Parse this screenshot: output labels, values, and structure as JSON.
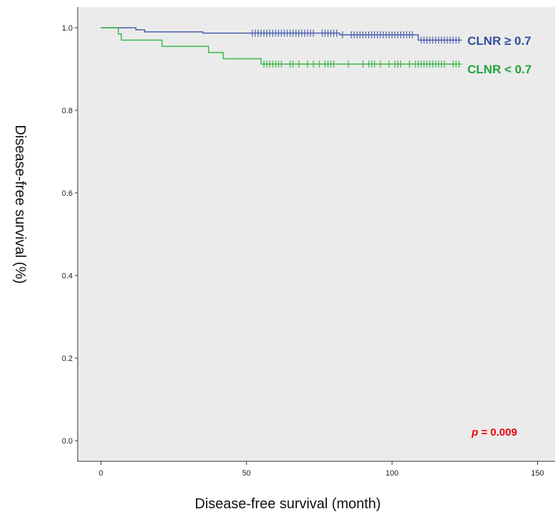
{
  "chart_data": {
    "type": "line",
    "xlabel": "Disease-free survival (month)",
    "ylabel": "Disease-free survival (%)",
    "xlim": [
      -8,
      156
    ],
    "ylim": [
      -0.05,
      1.05
    ],
    "x_ticks": [
      0,
      50,
      100,
      150
    ],
    "y_ticks": [
      0.0,
      0.2,
      0.4,
      0.6,
      0.8,
      1.0
    ],
    "x_tick_labels": [
      "0",
      "50",
      "100",
      "150"
    ],
    "y_tick_labels": [
      "0.0",
      "0.2",
      "0.4",
      "0.6",
      "0.8",
      "1.0"
    ],
    "grid": false,
    "background": "#ebebeb",
    "series": [
      {
        "name": "CLNR ≥ 0.7",
        "color": "#4a5eae",
        "steps": [
          [
            0,
            1.0
          ],
          [
            12,
            0.995
          ],
          [
            15,
            0.99
          ],
          [
            35,
            0.987
          ],
          [
            82,
            0.983
          ],
          [
            109,
            0.97
          ],
          [
            124,
            0.97
          ]
        ],
        "censored": [
          52,
          53,
          54,
          55,
          56,
          57,
          58,
          59,
          60,
          61,
          62,
          63,
          64,
          65,
          66,
          67,
          68,
          69,
          70,
          71,
          72,
          73,
          76,
          77,
          78,
          79,
          80,
          81,
          83,
          86,
          87,
          88,
          89,
          90,
          91,
          92,
          93,
          94,
          95,
          96,
          97,
          98,
          99,
          100,
          101,
          102,
          103,
          104,
          105,
          106,
          107,
          110,
          111,
          112,
          113,
          114,
          115,
          116,
          117,
          118,
          119,
          120,
          121,
          122,
          123
        ]
      },
      {
        "name": "CLNR < 0.7",
        "color": "#3cb84a",
        "steps": [
          [
            0,
            1.0
          ],
          [
            6,
            0.985
          ],
          [
            7,
            0.97
          ],
          [
            21,
            0.955
          ],
          [
            37,
            0.94
          ],
          [
            42,
            0.925
          ],
          [
            55,
            0.912
          ],
          [
            124,
            0.912
          ]
        ],
        "censored": [
          56,
          57,
          58,
          59,
          60,
          61,
          62,
          65,
          66,
          68,
          71,
          73,
          75,
          77,
          78,
          79,
          80,
          85,
          90,
          92,
          93,
          94,
          96,
          99,
          101,
          102,
          103,
          106,
          108,
          109,
          110,
          111,
          112,
          113,
          114,
          115,
          116,
          117,
          118,
          121,
          122,
          123
        ]
      }
    ],
    "annotations": {
      "p_label": "p",
      "p_text": " = 0.009"
    }
  }
}
